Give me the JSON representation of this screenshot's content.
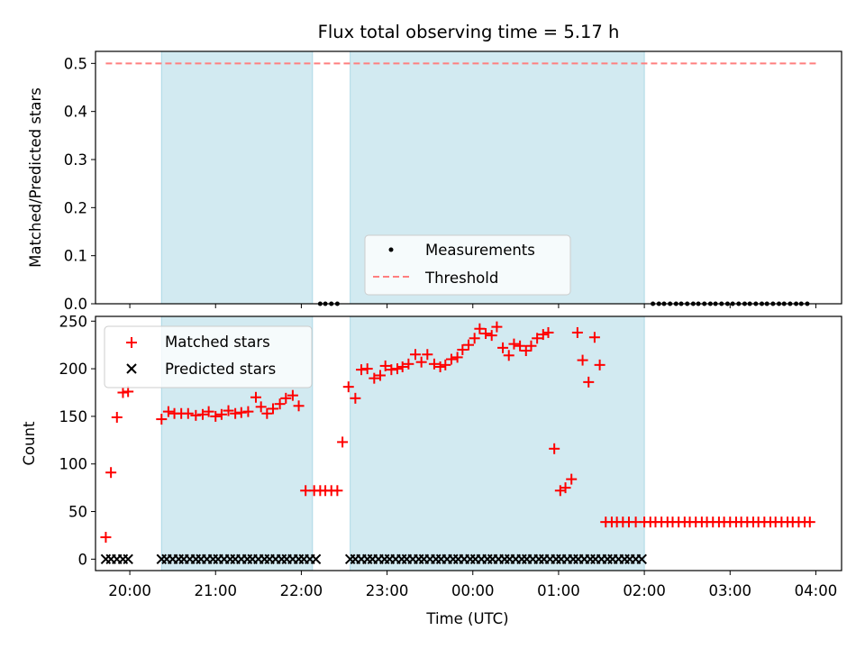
{
  "title": "Flux total observing time = 5.17 h",
  "colors": {
    "shade": "#add8e6",
    "matched": "#ff0000",
    "predicted": "#000000",
    "threshold": "#ff7f7f",
    "measurement": "#000000"
  },
  "chart_data": [
    {
      "type": "scatter",
      "panel": "top",
      "ylabel": "Matched/Predicted stars",
      "xlabel": "",
      "xlim": [
        -0.4,
        8.3
      ],
      "ylim": [
        0.0,
        0.525
      ],
      "x_unit": "hours after 20:00 UTC",
      "yticks": [
        "0.0",
        "0.1",
        "0.2",
        "0.3",
        "0.4",
        "0.5"
      ],
      "legend": {
        "placement": "lower-center",
        "entries": [
          "Measurements",
          "Threshold"
        ]
      },
      "threshold": {
        "name": "Threshold",
        "value": 0.5,
        "x_range": [
          -0.28,
          8.0
        ]
      },
      "shaded_intervals": [
        [
          0.37,
          2.13
        ],
        [
          2.57,
          6.0
        ]
      ],
      "series": [
        {
          "name": "Measurements",
          "x": [
            2.22,
            2.28,
            2.35,
            2.42,
            6.1,
            6.17,
            6.23,
            6.3,
            6.37,
            6.43,
            6.5,
            6.57,
            6.63,
            6.7,
            6.77,
            6.83,
            6.9,
            6.97,
            7.03,
            7.1,
            7.17,
            7.23,
            7.3,
            7.37,
            7.43,
            7.5,
            7.57,
            7.63,
            7.7,
            7.77,
            7.83,
            7.9
          ],
          "y": [
            0,
            0,
            0,
            0,
            0,
            0,
            0,
            0,
            0,
            0,
            0,
            0,
            0,
            0,
            0,
            0,
            0,
            0,
            0,
            0,
            0,
            0,
            0,
            0,
            0,
            0,
            0,
            0,
            0,
            0,
            0,
            0
          ]
        }
      ]
    },
    {
      "type": "scatter",
      "panel": "bottom",
      "ylabel": "Count",
      "xlabel": "Time (UTC)",
      "xlim": [
        -0.4,
        8.3
      ],
      "ylim": [
        -12,
        255
      ],
      "x_unit": "hours after 20:00 UTC",
      "yticks": [
        "0",
        "50",
        "100",
        "150",
        "200",
        "250"
      ],
      "xtick_positions": [
        0,
        1,
        2,
        3,
        4,
        5,
        6,
        7,
        8
      ],
      "xticks": [
        "20:00",
        "21:00",
        "22:00",
        "23:00",
        "00:00",
        "01:00",
        "02:00",
        "03:00",
        "04:00"
      ],
      "legend": {
        "placement": "top-left",
        "entries": [
          "Matched stars",
          "Predicted stars"
        ]
      },
      "shaded_intervals": [
        [
          0.37,
          2.13
        ],
        [
          2.57,
          6.0
        ]
      ],
      "series": [
        {
          "name": "Matched stars",
          "x": [
            -0.28,
            -0.22,
            -0.15,
            -0.08,
            -0.02,
            0.37,
            0.45,
            0.52,
            0.6,
            0.68,
            0.77,
            0.85,
            0.92,
            1.0,
            1.07,
            1.15,
            1.23,
            1.3,
            1.38,
            1.47,
            1.53,
            1.6,
            1.67,
            1.75,
            1.82,
            1.9,
            1.97,
            2.05,
            2.15,
            2.22,
            2.28,
            2.35,
            2.42,
            2.48,
            2.55,
            2.63,
            2.7,
            2.77,
            2.85,
            2.92,
            2.98,
            3.05,
            3.12,
            3.18,
            3.25,
            3.33,
            3.4,
            3.47,
            3.55,
            3.62,
            3.68,
            3.75,
            3.82,
            3.88,
            3.95,
            4.02,
            4.08,
            4.15,
            4.22,
            4.28,
            4.35,
            4.42,
            4.48,
            4.55,
            4.62,
            4.68,
            4.75,
            4.82,
            4.88,
            4.95,
            5.02,
            5.08,
            5.15,
            5.22,
            5.28,
            5.35,
            5.42,
            5.48,
            5.55,
            5.62,
            5.68,
            5.75,
            5.82,
            5.9,
            6.0,
            6.07,
            6.13,
            6.2,
            6.27,
            6.33,
            6.4,
            6.47,
            6.53,
            6.6,
            6.67,
            6.73,
            6.8,
            6.87,
            6.93,
            7.0,
            7.07,
            7.13,
            7.2,
            7.27,
            7.33,
            7.4,
            7.47,
            7.53,
            7.6,
            7.67,
            7.73,
            7.8,
            7.87,
            7.93
          ],
          "y": [
            23,
            91,
            149,
            175,
            176,
            147,
            155,
            153,
            153,
            153,
            151,
            152,
            155,
            150,
            152,
            156,
            153,
            154,
            155,
            170,
            160,
            153,
            158,
            163,
            169,
            172,
            161,
            72,
            72,
            72,
            72,
            72,
            72,
            123,
            181,
            169,
            199,
            200,
            190,
            193,
            203,
            199,
            200,
            202,
            205,
            215,
            207,
            215,
            205,
            202,
            204,
            210,
            212,
            220,
            225,
            232,
            242,
            237,
            235,
            244,
            222,
            214,
            226,
            224,
            219,
            224,
            232,
            236,
            238,
            116,
            72,
            75,
            84,
            238,
            209,
            186,
            233,
            204,
            39,
            39,
            39,
            39,
            39,
            39,
            39,
            39,
            39,
            39,
            39,
            39,
            39,
            39,
            39,
            39,
            39,
            39,
            39,
            39,
            39,
            39,
            39,
            39,
            39,
            39,
            39,
            39,
            39,
            39,
            39,
            39,
            39,
            39,
            39,
            39
          ]
        },
        {
          "name": "Predicted stars",
          "x": [
            -0.28,
            -0.22,
            -0.15,
            -0.08,
            -0.02,
            0.37,
            0.43,
            0.5,
            0.57,
            0.63,
            0.7,
            0.77,
            0.83,
            0.9,
            0.97,
            1.03,
            1.1,
            1.17,
            1.23,
            1.3,
            1.37,
            1.43,
            1.5,
            1.57,
            1.63,
            1.7,
            1.77,
            1.83,
            1.9,
            1.97,
            2.03,
            2.1,
            2.17,
            2.57,
            2.63,
            2.7,
            2.77,
            2.83,
            2.9,
            2.97,
            3.03,
            3.1,
            3.17,
            3.23,
            3.3,
            3.37,
            3.43,
            3.5,
            3.57,
            3.63,
            3.7,
            3.77,
            3.83,
            3.9,
            3.97,
            4.03,
            4.1,
            4.17,
            4.23,
            4.3,
            4.37,
            4.43,
            4.5,
            4.57,
            4.63,
            4.7,
            4.77,
            4.83,
            4.9,
            4.97,
            5.03,
            5.1,
            5.17,
            5.23,
            5.3,
            5.37,
            5.43,
            5.5,
            5.57,
            5.63,
            5.7,
            5.77,
            5.83,
            5.9,
            5.97
          ],
          "y": [
            0,
            0,
            0,
            0,
            0,
            0,
            0,
            0,
            0,
            0,
            0,
            0,
            0,
            0,
            0,
            0,
            0,
            0,
            0,
            0,
            0,
            0,
            0,
            0,
            0,
            0,
            0,
            0,
            0,
            0,
            0,
            0,
            0,
            0,
            0,
            0,
            0,
            0,
            0,
            0,
            0,
            0,
            0,
            0,
            0,
            0,
            0,
            0,
            0,
            0,
            0,
            0,
            0,
            0,
            0,
            0,
            0,
            0,
            0,
            0,
            0,
            0,
            0,
            0,
            0,
            0,
            0,
            0,
            0,
            0,
            0,
            0,
            0,
            0,
            0,
            0,
            0,
            0,
            0,
            0,
            0,
            0,
            0,
            0,
            0
          ]
        }
      ]
    }
  ]
}
